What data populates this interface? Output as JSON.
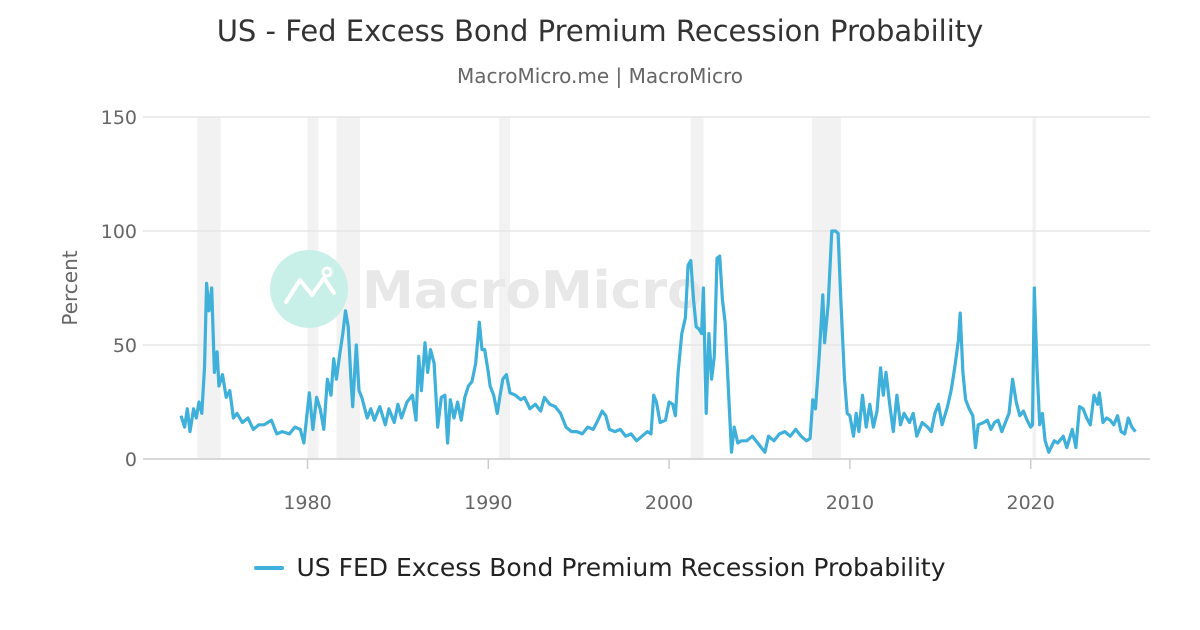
{
  "chart_data": {
    "type": "line",
    "title": "US - Fed Excess Bond Premium Recession Probability",
    "subtitle": "MacroMicro.me | MacroMicro",
    "ylabel": "Percent",
    "xlabel": "",
    "ylim": [
      0,
      150
    ],
    "xlim": [
      1970.9,
      2026.6
    ],
    "yticks": [
      "0",
      "50",
      "100",
      "150"
    ],
    "xticks": [
      "1980",
      "1990",
      "2000",
      "2010",
      "2020"
    ],
    "grid": true,
    "legend_position": "bottom",
    "watermark": "MacroMicro",
    "colors": {
      "line": "#3eb0d9",
      "recession": "#f2f2f2",
      "grid": "#e6e6e6",
      "watermark_circle": "#c9f0e8"
    },
    "recessions": [
      [
        1973.9,
        1975.2
      ],
      [
        1980.0,
        1980.6
      ],
      [
        1981.6,
        1982.9
      ],
      [
        1990.6,
        1991.2
      ],
      [
        2001.2,
        2001.9
      ],
      [
        2007.9,
        2009.5
      ],
      [
        2020.1,
        2020.3
      ]
    ],
    "series": [
      {
        "name": "US FED Excess Bond Premium Recession Probability",
        "points": [
          [
            1973.0,
            19
          ],
          [
            1973.2,
            14
          ],
          [
            1973.35,
            22
          ],
          [
            1973.5,
            12
          ],
          [
            1973.7,
            22
          ],
          [
            1973.85,
            18
          ],
          [
            1974.0,
            25
          ],
          [
            1974.15,
            20
          ],
          [
            1974.3,
            40
          ],
          [
            1974.42,
            77
          ],
          [
            1974.55,
            65
          ],
          [
            1974.7,
            75
          ],
          [
            1974.85,
            38
          ],
          [
            1975.0,
            47
          ],
          [
            1975.1,
            32
          ],
          [
            1975.3,
            37
          ],
          [
            1975.5,
            27
          ],
          [
            1975.7,
            30
          ],
          [
            1975.9,
            18
          ],
          [
            1976.1,
            20
          ],
          [
            1976.4,
            16
          ],
          [
            1976.7,
            18
          ],
          [
            1977.0,
            13
          ],
          [
            1977.3,
            15
          ],
          [
            1977.6,
            15
          ],
          [
            1978.0,
            17
          ],
          [
            1978.3,
            11
          ],
          [
            1978.6,
            12
          ],
          [
            1979.0,
            11
          ],
          [
            1979.3,
            14
          ],
          [
            1979.6,
            13
          ],
          [
            1979.8,
            7
          ],
          [
            1979.95,
            18
          ],
          [
            1980.1,
            29
          ],
          [
            1980.3,
            13
          ],
          [
            1980.5,
            27
          ],
          [
            1980.7,
            22
          ],
          [
            1980.9,
            13
          ],
          [
            1981.1,
            35
          ],
          [
            1981.3,
            28
          ],
          [
            1981.45,
            44
          ],
          [
            1981.6,
            35
          ],
          [
            1981.8,
            47
          ],
          [
            1981.95,
            55
          ],
          [
            1982.1,
            65
          ],
          [
            1982.25,
            58
          ],
          [
            1982.4,
            35
          ],
          [
            1982.5,
            23
          ],
          [
            1982.7,
            50
          ],
          [
            1982.85,
            30
          ],
          [
            1983.0,
            27
          ],
          [
            1983.3,
            18
          ],
          [
            1983.5,
            22
          ],
          [
            1983.7,
            17
          ],
          [
            1984.0,
            23
          ],
          [
            1984.3,
            15
          ],
          [
            1984.5,
            22
          ],
          [
            1984.8,
            16
          ],
          [
            1985.0,
            24
          ],
          [
            1985.2,
            18
          ],
          [
            1985.5,
            25
          ],
          [
            1985.8,
            28
          ],
          [
            1986.0,
            17
          ],
          [
            1986.15,
            45
          ],
          [
            1986.3,
            30
          ],
          [
            1986.5,
            51
          ],
          [
            1986.65,
            38
          ],
          [
            1986.8,
            48
          ],
          [
            1987.0,
            42
          ],
          [
            1987.2,
            14
          ],
          [
            1987.4,
            27
          ],
          [
            1987.6,
            28
          ],
          [
            1987.75,
            7
          ],
          [
            1987.9,
            26
          ],
          [
            1988.1,
            18
          ],
          [
            1988.3,
            25
          ],
          [
            1988.5,
            17
          ],
          [
            1988.7,
            27
          ],
          [
            1988.9,
            32
          ],
          [
            1989.1,
            34
          ],
          [
            1989.3,
            42
          ],
          [
            1989.5,
            60
          ],
          [
            1989.65,
            48
          ],
          [
            1989.8,
            48
          ],
          [
            1990.0,
            38
          ],
          [
            1990.1,
            32
          ],
          [
            1990.3,
            28
          ],
          [
            1990.5,
            20
          ],
          [
            1990.65,
            28
          ],
          [
            1990.8,
            35
          ],
          [
            1991.0,
            37
          ],
          [
            1991.2,
            29
          ],
          [
            1991.5,
            28
          ],
          [
            1991.8,
            26
          ],
          [
            1992.0,
            27
          ],
          [
            1992.3,
            22
          ],
          [
            1992.6,
            24
          ],
          [
            1992.9,
            21
          ],
          [
            1993.1,
            27
          ],
          [
            1993.4,
            24
          ],
          [
            1993.7,
            23
          ],
          [
            1994.0,
            20
          ],
          [
            1994.3,
            14
          ],
          [
            1994.6,
            12
          ],
          [
            1994.9,
            12
          ],
          [
            1995.2,
            11
          ],
          [
            1995.5,
            14
          ],
          [
            1995.8,
            13
          ],
          [
            1996.0,
            16
          ],
          [
            1996.3,
            21
          ],
          [
            1996.5,
            19
          ],
          [
            1996.7,
            13
          ],
          [
            1997.0,
            12
          ],
          [
            1997.3,
            13
          ],
          [
            1997.6,
            10
          ],
          [
            1997.9,
            11
          ],
          [
            1998.2,
            8
          ],
          [
            1998.5,
            10
          ],
          [
            1998.8,
            12
          ],
          [
            1999.0,
            11
          ],
          [
            1999.15,
            28
          ],
          [
            1999.3,
            25
          ],
          [
            1999.5,
            16
          ],
          [
            1999.8,
            17
          ],
          [
            2000.0,
            25
          ],
          [
            2000.2,
            24
          ],
          [
            2000.35,
            19
          ],
          [
            2000.5,
            38
          ],
          [
            2000.7,
            55
          ],
          [
            2000.9,
            62
          ],
          [
            2001.05,
            85
          ],
          [
            2001.2,
            87
          ],
          [
            2001.35,
            70
          ],
          [
            2001.5,
            58
          ],
          [
            2001.65,
            57
          ],
          [
            2001.8,
            55
          ],
          [
            2001.9,
            75
          ],
          [
            2002.05,
            20
          ],
          [
            2002.2,
            55
          ],
          [
            2002.35,
            35
          ],
          [
            2002.5,
            45
          ],
          [
            2002.65,
            88
          ],
          [
            2002.8,
            89
          ],
          [
            2002.95,
            70
          ],
          [
            2003.1,
            60
          ],
          [
            2003.3,
            27
          ],
          [
            2003.45,
            3
          ],
          [
            2003.6,
            14
          ],
          [
            2003.8,
            7
          ],
          [
            2004.0,
            8
          ],
          [
            2004.3,
            8
          ],
          [
            2004.6,
            10
          ],
          [
            2004.9,
            7
          ],
          [
            2005.1,
            5
          ],
          [
            2005.3,
            3
          ],
          [
            2005.5,
            10
          ],
          [
            2005.8,
            8
          ],
          [
            2006.1,
            11
          ],
          [
            2006.4,
            12
          ],
          [
            2006.7,
            10
          ],
          [
            2007.0,
            13
          ],
          [
            2007.3,
            10
          ],
          [
            2007.6,
            8
          ],
          [
            2007.8,
            9
          ],
          [
            2007.95,
            26
          ],
          [
            2008.1,
            22
          ],
          [
            2008.3,
            45
          ],
          [
            2008.5,
            72
          ],
          [
            2008.6,
            51
          ],
          [
            2008.8,
            68
          ],
          [
            2009.0,
            100
          ],
          [
            2009.2,
            100
          ],
          [
            2009.35,
            99
          ],
          [
            2009.5,
            70
          ],
          [
            2009.7,
            35
          ],
          [
            2009.85,
            20
          ],
          [
            2010.0,
            19
          ],
          [
            2010.2,
            10
          ],
          [
            2010.35,
            20
          ],
          [
            2010.5,
            12
          ],
          [
            2010.7,
            28
          ],
          [
            2010.9,
            14
          ],
          [
            2011.1,
            24
          ],
          [
            2011.3,
            14
          ],
          [
            2011.5,
            21
          ],
          [
            2011.7,
            40
          ],
          [
            2011.85,
            28
          ],
          [
            2012.0,
            38
          ],
          [
            2012.2,
            24
          ],
          [
            2012.4,
            12
          ],
          [
            2012.6,
            28
          ],
          [
            2012.8,
            15
          ],
          [
            2013.0,
            20
          ],
          [
            2013.3,
            16
          ],
          [
            2013.5,
            20
          ],
          [
            2013.7,
            10
          ],
          [
            2014.0,
            16
          ],
          [
            2014.3,
            14
          ],
          [
            2014.5,
            12
          ],
          [
            2014.7,
            20
          ],
          [
            2014.9,
            24
          ],
          [
            2015.1,
            15
          ],
          [
            2015.4,
            23
          ],
          [
            2015.6,
            30
          ],
          [
            2015.8,
            40
          ],
          [
            2016.0,
            52
          ],
          [
            2016.1,
            64
          ],
          [
            2016.25,
            38
          ],
          [
            2016.4,
            26
          ],
          [
            2016.6,
            22
          ],
          [
            2016.8,
            19
          ],
          [
            2016.95,
            5
          ],
          [
            2017.1,
            15
          ],
          [
            2017.4,
            16
          ],
          [
            2017.6,
            17
          ],
          [
            2017.8,
            13
          ],
          [
            2018.0,
            16
          ],
          [
            2018.2,
            17
          ],
          [
            2018.4,
            12
          ],
          [
            2018.6,
            16
          ],
          [
            2018.8,
            20
          ],
          [
            2019.0,
            35
          ],
          [
            2019.2,
            25
          ],
          [
            2019.4,
            19
          ],
          [
            2019.6,
            21
          ],
          [
            2019.8,
            17
          ],
          [
            2020.0,
            14
          ],
          [
            2020.1,
            15
          ],
          [
            2020.2,
            75
          ],
          [
            2020.35,
            40
          ],
          [
            2020.5,
            15
          ],
          [
            2020.65,
            20
          ],
          [
            2020.8,
            8
          ],
          [
            2021.0,
            3
          ],
          [
            2021.3,
            8
          ],
          [
            2021.5,
            7
          ],
          [
            2021.8,
            10
          ],
          [
            2022.0,
            5
          ],
          [
            2022.3,
            13
          ],
          [
            2022.5,
            5
          ],
          [
            2022.7,
            23
          ],
          [
            2022.9,
            22
          ],
          [
            2023.1,
            18
          ],
          [
            2023.3,
            15
          ],
          [
            2023.5,
            28
          ],
          [
            2023.7,
            24
          ],
          [
            2023.8,
            29
          ],
          [
            2024.0,
            16
          ],
          [
            2024.2,
            18
          ],
          [
            2024.4,
            17
          ],
          [
            2024.6,
            15
          ],
          [
            2024.8,
            19
          ],
          [
            2025.0,
            12
          ],
          [
            2025.2,
            11
          ],
          [
            2025.4,
            18
          ],
          [
            2025.6,
            14
          ],
          [
            2025.8,
            12
          ]
        ]
      }
    ]
  }
}
